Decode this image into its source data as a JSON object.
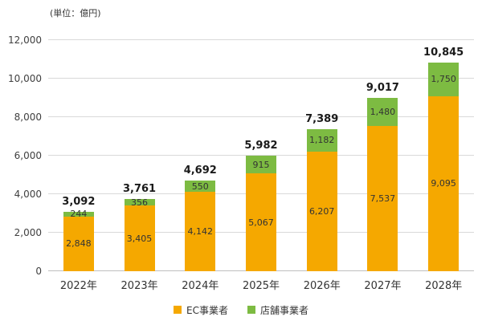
{
  "chart": {
    "unit_label": "(単位：億円)"
  },
  "chart_data": {
    "type": "bar",
    "stacked": true,
    "title": "",
    "xlabel": "",
    "ylabel": "",
    "unit": "億円",
    "categories": [
      "2022年",
      "2023年",
      "2024年",
      "2025年",
      "2026年",
      "2027年",
      "2028年"
    ],
    "series": [
      {
        "name": "EC事業者",
        "color": "#f5a800",
        "values": [
          2848,
          3405,
          4142,
          5067,
          6207,
          7537,
          9095
        ]
      },
      {
        "name": "店舗事業者",
        "color": "#7dbb42",
        "values": [
          244,
          356,
          550,
          915,
          1182,
          1480,
          1750
        ]
      }
    ],
    "totals": [
      3092,
      3761,
      4692,
      5982,
      7389,
      9017,
      10845
    ],
    "ylim": [
      0,
      12000
    ],
    "ytick_interval": 2000,
    "yticks": [
      "0",
      "2,000",
      "4,000",
      "6,000",
      "8,000",
      "10,000",
      "12,000"
    ],
    "grid": true,
    "legend_position": "bottom"
  }
}
